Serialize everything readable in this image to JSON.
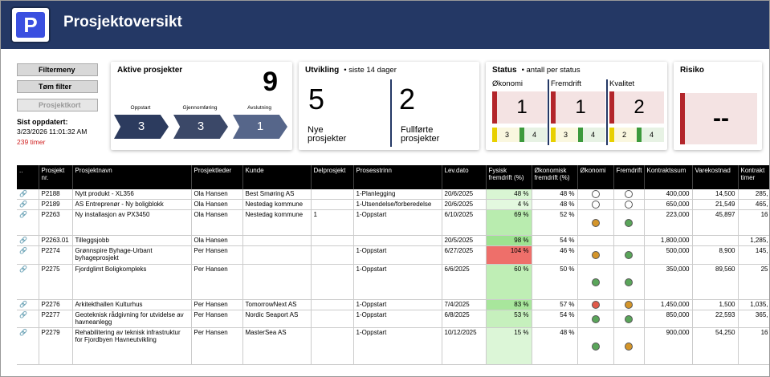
{
  "header": {
    "logo": "P",
    "title": "Prosjektoversikt"
  },
  "sidebar": {
    "buttons": [
      "Filtermeny",
      "Tøm filter",
      "Prosjektkort"
    ],
    "updated_label": "Sist oppdatert:",
    "updated_at": "3/23/2026 11:01:32 AM",
    "age": "239 timer"
  },
  "cards": {
    "active": {
      "title": "Aktive prosjekter",
      "total": 9,
      "phases": [
        {
          "label": "Oppstart",
          "count": 3,
          "color": "#2c3b5e"
        },
        {
          "label": "Gjennomføring",
          "count": 3,
          "color": "#3b4868"
        },
        {
          "label": "Avslutning",
          "count": 1,
          "color": "#56668a"
        }
      ]
    },
    "development": {
      "title": "Utvikling",
      "subtitle": "• siste 14 dager",
      "new": {
        "count": 5,
        "label": "Nye prosjekter"
      },
      "done": {
        "count": 2,
        "label": "Fullførte prosjekter"
      }
    },
    "status": {
      "title": "Status",
      "subtitle": "• antall per status",
      "groups": [
        {
          "label": "Økonomi",
          "red": 1,
          "yellow": 3,
          "green": 4
        },
        {
          "label": "Fremdrift",
          "red": 1,
          "yellow": 3,
          "green": 4
        },
        {
          "label": "Kvalitet",
          "red": 2,
          "yellow": 2,
          "green": 4
        }
      ]
    },
    "risk": {
      "title": "Risiko",
      "value": "--"
    }
  },
  "table": {
    "columns": [
      "..",
      "Prosjekt nr.",
      "Prosjektnavn",
      "Prosjektleder",
      "Kunde",
      "Delprosjekt",
      "Prosesstrinn",
      "Lev.dato",
      "Fysisk fremdrift (%)",
      "Økonomisk fremdrift (%)",
      "Økonomi",
      "Fremdrift",
      "Kontraktssum",
      "Varekostnad",
      "Kontrakt timer"
    ],
    "rows": [
      {
        "cells": [
          "P2188",
          "Nytt produkt - XL356",
          "Ola Hansen",
          "Best Smøring AS",
          null,
          "1-Planlegging",
          "20/6/2025",
          "48 %",
          "48 %",
          "400,000",
          "14,500",
          "285,"
        ],
        "progress_color": "#d9f5d3",
        "okonomi": "#ffffff",
        "fremdrift": "#ffffff"
      },
      {
        "cells": [
          "P2189",
          "AS Entreprenør - Ny boligblokk",
          "Ola Hansen",
          "Nestedag kommune",
          null,
          "1-Utsendelse/forberedelse",
          "20/6/2025",
          "4 %",
          "48 %",
          "650,000",
          "21,549",
          "465,"
        ],
        "progress_color": "#e3f8df",
        "okonomi": "#ffffff",
        "fremdrift": "#ffffff"
      },
      {
        "cells": [
          "P2263",
          "Ny installasjon av PX3450",
          "Ola Hansen",
          "Nestedag kommune",
          "1",
          "1-Oppstart",
          "6/10/2025",
          "69 %",
          "52 %",
          "223,000",
          "45,897",
          "16"
        ],
        "progress_color": "#b9ecaf",
        "okonomi": "#d4952a",
        "fremdrift": "#5aa55a"
      },
      {
        "cells": [
          "P2263.01",
          "Tilleggsjobb",
          "Ola Hansen",
          null,
          null,
          null,
          "20/5/2025",
          "98 %",
          "54 %",
          "1,800,000",
          null,
          "1,285,"
        ],
        "progress_color": "#9de290",
        "okonomi": null,
        "fremdrift": null
      },
      {
        "cells": [
          "P2274",
          "Grønnspire Byhage-Urbant byhageprosjekt",
          "Per Hansen",
          null,
          null,
          "1-Oppstart",
          "6/27/2025",
          "104 %",
          "46 %",
          "500,000",
          "8,900",
          "145,"
        ],
        "progress_color": "#ee6f6a",
        "okonomi": "#d4952a",
        "fremdrift": "#5aa55a"
      },
      {
        "cells": [
          "P2275",
          "Fjordglimt Boligkompleks",
          "Per Hansen",
          null,
          null,
          "1-Oppstart",
          "6/6/2025",
          "60 %",
          "50 %",
          "350,000",
          "89,560",
          "25"
        ],
        "progress_color": "#bfeeb5",
        "okonomi": "#5aa55a",
        "fremdrift": "#5aa55a"
      },
      {
        "cells": [
          "P2276",
          "Arkitekthallen Kulturhus",
          "Per Hansen",
          "TomorrowNext AS",
          null,
          "1-Oppstart",
          "7/4/2025",
          "83 %",
          "57 %",
          "1,450,000",
          "1,500",
          "1,035,"
        ],
        "progress_color": "#a8e69c",
        "okonomi": "#e05a4a",
        "fremdrift": "#d4952a"
      },
      {
        "cells": [
          "P2277",
          "Geoteknisk rådgivning for utvidelse av havneanlegg",
          "Per Hansen",
          "Nordic Seaport AS",
          null,
          "1-Oppstart",
          "6/8/2025",
          "53 %",
          "54 %",
          "850,000",
          "22,593",
          "365,"
        ],
        "progress_color": "#c6f0bd",
        "okonomi": "#5aa55a",
        "fremdrift": "#5aa55a"
      },
      {
        "cells": [
          "P2279",
          "Rehabilitering av teknisk infrastruktur for Fjordbyen Havneutvikling",
          "Per Hansen",
          "MasterSea AS",
          null,
          "1-Oppstart",
          "10/12/2025",
          "15 %",
          "48 %",
          "900,000",
          "54,250",
          "16"
        ],
        "progress_color": "#dcf6d7",
        "okonomi": "#5aa55a",
        "fremdrift": "#d4952a"
      }
    ]
  }
}
